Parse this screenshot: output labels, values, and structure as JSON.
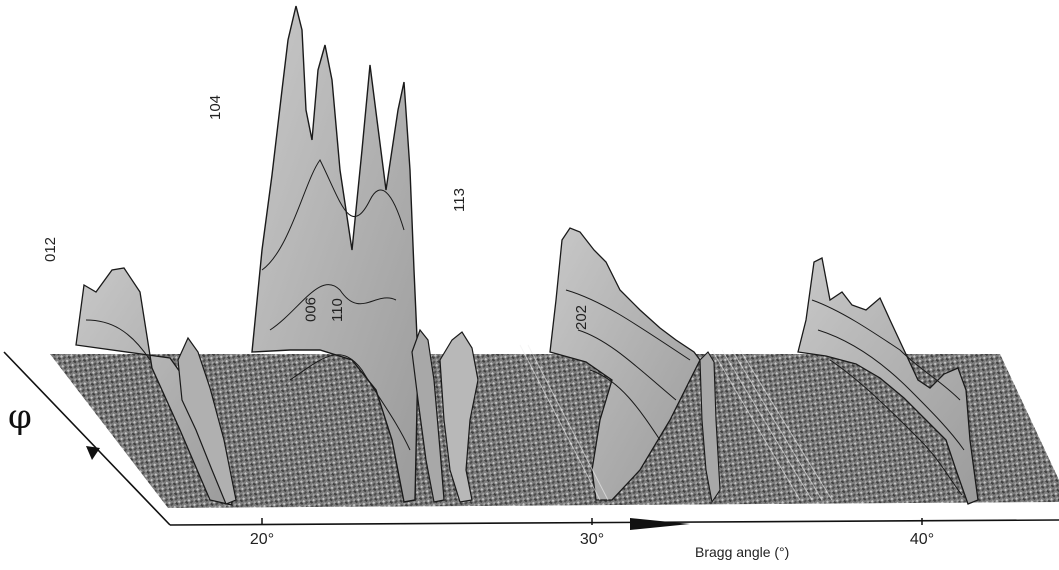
{
  "chart_data": {
    "type": "area",
    "view": "3d-waterfall",
    "xlabel": "Bragg angle (°)",
    "ylabel": "φ",
    "xlim": [
      15,
      45
    ],
    "x_ticks": [
      {
        "value": 20,
        "label": "20°"
      },
      {
        "value": 30,
        "label": "30°"
      },
      {
        "value": 40,
        "label": "40°"
      }
    ],
    "peak_labels": [
      {
        "label": "012",
        "x": 16.6
      },
      {
        "label": "104",
        "x": 21.6
      },
      {
        "label": "006",
        "x": 24.5
      },
      {
        "label": "110",
        "x": 25.3
      },
      {
        "label": "113",
        "x": 29.0
      },
      {
        "label": "202",
        "x": 32.7
      }
    ],
    "front_profile": [
      {
        "x": 16.0,
        "y": 0.04
      },
      {
        "x": 18.5,
        "y": 0.32
      },
      {
        "x": 24.3,
        "y": 0.48
      },
      {
        "x": 25.6,
        "y": 0.12
      },
      {
        "x": 30.0,
        "y": 0.05
      },
      {
        "x": 32.3,
        "y": 0.08
      },
      {
        "x": 33.0,
        "y": 0.3
      },
      {
        "x": 41.2,
        "y": 0.3
      },
      {
        "x": 42.0,
        "y": 0.05
      }
    ],
    "back_profile": [
      {
        "x": 15.3,
        "y": 0.32
      },
      {
        "x": 16.4,
        "y": 0.4
      },
      {
        "x": 17.0,
        "y": 0.5
      },
      {
        "x": 17.5,
        "y": 0.42
      },
      {
        "x": 21.1,
        "y": 0.75
      },
      {
        "x": 21.6,
        "y": 1.0
      },
      {
        "x": 22.1,
        "y": 0.7
      },
      {
        "x": 22.6,
        "y": 0.92
      },
      {
        "x": 23.3,
        "y": 0.45
      },
      {
        "x": 26.5,
        "y": 0.22
      },
      {
        "x": 29.0,
        "y": 0.52
      },
      {
        "x": 30.5,
        "y": 0.42
      },
      {
        "x": 31.5,
        "y": 0.3
      },
      {
        "x": 32.0,
        "y": 0.24
      },
      {
        "x": 36.5,
        "y": 0.42
      },
      {
        "x": 37.2,
        "y": 0.3
      },
      {
        "x": 38.0,
        "y": 0.28
      }
    ],
    "grid": false,
    "colors": {
      "surface": "#b4b4b4",
      "surface_dark": "#8a8a8a",
      "texture": "#5f5f5f",
      "line": "#1a1a1a"
    }
  }
}
